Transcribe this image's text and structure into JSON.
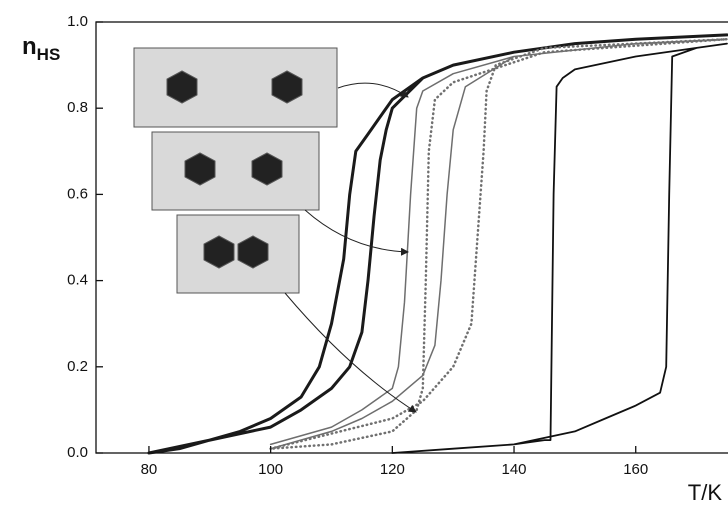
{
  "chart_data": {
    "type": "line",
    "ylabel": {
      "main": "n",
      "sub": "HS"
    },
    "xlabel": "T/K",
    "xlim": [
      71.3,
      175
    ],
    "ylim": [
      0,
      1.0
    ],
    "xticks": [
      80,
      100,
      120,
      140,
      160
    ],
    "yticks": [
      {
        "value": 0,
        "label": "0.0"
      },
      {
        "value": 0.2,
        "label": "0.2"
      },
      {
        "value": 0.4,
        "label": "0.4"
      },
      {
        "value": 0.6,
        "label": "0.6"
      },
      {
        "value": 0.8,
        "label": "0.8"
      },
      {
        "value": 1.0,
        "label": "1.0"
      }
    ],
    "series": [
      {
        "color": "#1a1a1a",
        "width": 3,
        "style": "solid",
        "x": [
          80,
          90,
          100,
          105,
          110,
          113,
          115,
          116,
          117,
          118,
          119,
          120,
          125,
          130,
          140,
          150,
          160,
          175,
          160,
          150,
          140,
          130,
          125,
          120,
          118,
          116,
          114,
          113,
          112,
          110,
          108,
          105,
          100,
          95,
          90,
          85,
          80
        ],
        "values": [
          0,
          0.03,
          0.06,
          0.1,
          0.15,
          0.2,
          0.28,
          0.4,
          0.55,
          0.68,
          0.75,
          0.8,
          0.87,
          0.9,
          0.93,
          0.95,
          0.96,
          0.97,
          0.96,
          0.95,
          0.93,
          0.9,
          0.87,
          0.82,
          0.78,
          0.74,
          0.7,
          0.6,
          0.45,
          0.3,
          0.2,
          0.13,
          0.08,
          0.05,
          0.03,
          0.01,
          0
        ]
      },
      {
        "color": "#6e6e6e",
        "width": 1.5,
        "style": "solid",
        "x": [
          100,
          110,
          115,
          120,
          125,
          127,
          128,
          129,
          130,
          132,
          140,
          160,
          175,
          160,
          140,
          130,
          125,
          124,
          123,
          122,
          121,
          120,
          115,
          110,
          100
        ],
        "values": [
          0.01,
          0.05,
          0.08,
          0.12,
          0.18,
          0.25,
          0.4,
          0.6,
          0.75,
          0.85,
          0.92,
          0.95,
          0.96,
          0.95,
          0.92,
          0.88,
          0.84,
          0.8,
          0.6,
          0.35,
          0.2,
          0.15,
          0.1,
          0.06,
          0.02
        ]
      },
      {
        "color": "#707070",
        "width": 2.5,
        "style": "dotted",
        "x": [
          100,
          120,
          125,
          130,
          133,
          134,
          135,
          135.5,
          137,
          145,
          175,
          145,
          130,
          127,
          126,
          125.5,
          125,
          124,
          120,
          110,
          100
        ],
        "values": [
          0.01,
          0.08,
          0.12,
          0.2,
          0.3,
          0.5,
          0.7,
          0.84,
          0.9,
          0.94,
          0.96,
          0.93,
          0.86,
          0.82,
          0.7,
          0.4,
          0.15,
          0.1,
          0.05,
          0.02,
          0.01
        ]
      },
      {
        "color": "#111111",
        "width": 1.8,
        "style": "solid",
        "x": [
          120,
          130,
          140,
          150,
          155,
          160,
          164,
          165,
          165.5,
          166,
          170,
          175,
          170,
          160,
          150,
          148,
          147,
          146.5,
          146,
          145,
          140,
          130,
          120
        ],
        "values": [
          0,
          0.01,
          0.02,
          0.05,
          0.08,
          0.11,
          0.14,
          0.2,
          0.6,
          0.92,
          0.94,
          0.95,
          0.94,
          0.92,
          0.89,
          0.87,
          0.85,
          0.6,
          0.03,
          0.03,
          0.02,
          0.01,
          0
        ]
      }
    ]
  }
}
